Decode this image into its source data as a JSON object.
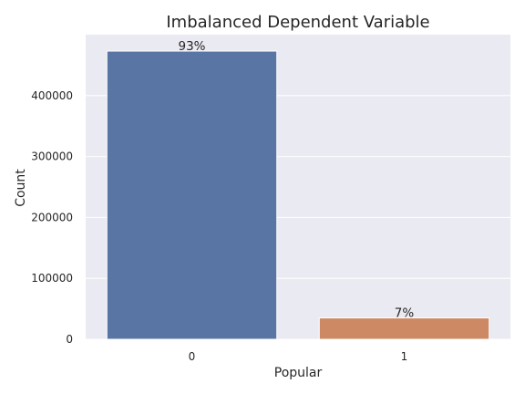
{
  "chart_data": {
    "type": "bar",
    "title": "Imbalanced Dependent Variable",
    "xlabel": "Popular",
    "ylabel": "Count",
    "categories": [
      "0",
      "1"
    ],
    "values": [
      473000,
      35000
    ],
    "data_labels": [
      "93%",
      "7%"
    ],
    "ylim": [
      0,
      500000
    ],
    "yticks": [
      0,
      100000,
      200000,
      300000,
      400000
    ],
    "ytick_labels": [
      "0",
      "100000",
      "200000",
      "300000",
      "400000"
    ],
    "grid": true,
    "colors": [
      "#5875a4",
      "#cc8963"
    ],
    "background": "#eaeaf2"
  }
}
